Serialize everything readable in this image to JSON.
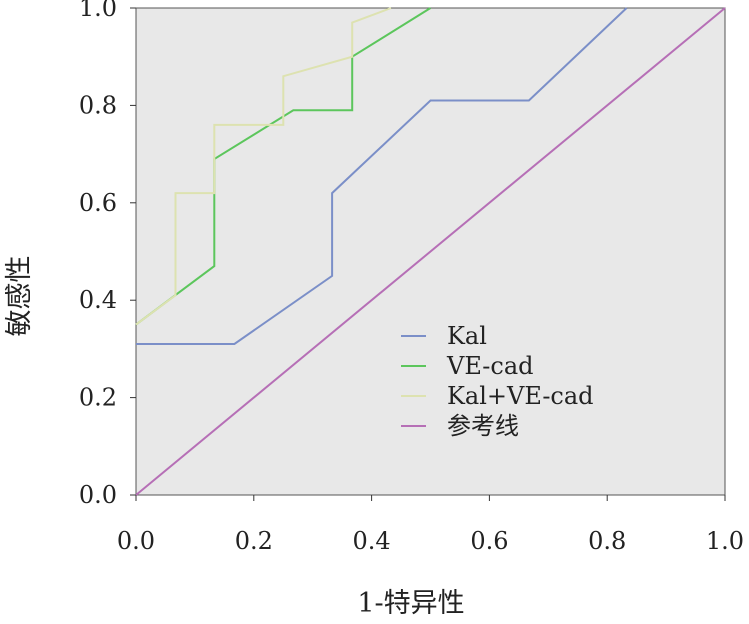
{
  "chart_data": {
    "type": "line",
    "title": "",
    "xlabel": "1-特异性",
    "ylabel": "敏感性",
    "xlim": [
      0.0,
      1.0
    ],
    "ylim": [
      0.0,
      1.0
    ],
    "xticks": [
      "0.0",
      "0.2",
      "0.4",
      "0.6",
      "0.8",
      "1.0"
    ],
    "yticks": [
      "0.0",
      "0.2",
      "0.4",
      "0.6",
      "0.8",
      "1.0"
    ],
    "grid": false,
    "legend_position": "center-right",
    "plot_background": "#e8e8e8",
    "series": [
      {
        "name": "Kal",
        "color": "#7b8fc8",
        "x": [
          0.0,
          0.167,
          0.333,
          0.333,
          0.5,
          0.667,
          0.833
        ],
        "y": [
          0.31,
          0.31,
          0.45,
          0.62,
          0.81,
          0.81,
          1.0
        ]
      },
      {
        "name": "VE-cad",
        "color": "#5cc65c",
        "x": [
          0.0,
          0.133,
          0.133,
          0.267,
          0.367,
          0.367,
          0.5
        ],
        "y": [
          0.35,
          0.47,
          0.69,
          0.79,
          0.79,
          0.9,
          1.0
        ]
      },
      {
        "name": "Kal+VE-cad",
        "color": "#dde2b0",
        "x": [
          0.0,
          0.067,
          0.067,
          0.133,
          0.133,
          0.25,
          0.25,
          0.367,
          0.367,
          0.433
        ],
        "y": [
          0.35,
          0.41,
          0.62,
          0.62,
          0.76,
          0.76,
          0.86,
          0.9,
          0.97,
          1.0
        ]
      },
      {
        "name": "参考线",
        "color": "#b66fb6",
        "x": [
          0.0,
          1.0
        ],
        "y": [
          0.0,
          1.0
        ]
      }
    ]
  }
}
